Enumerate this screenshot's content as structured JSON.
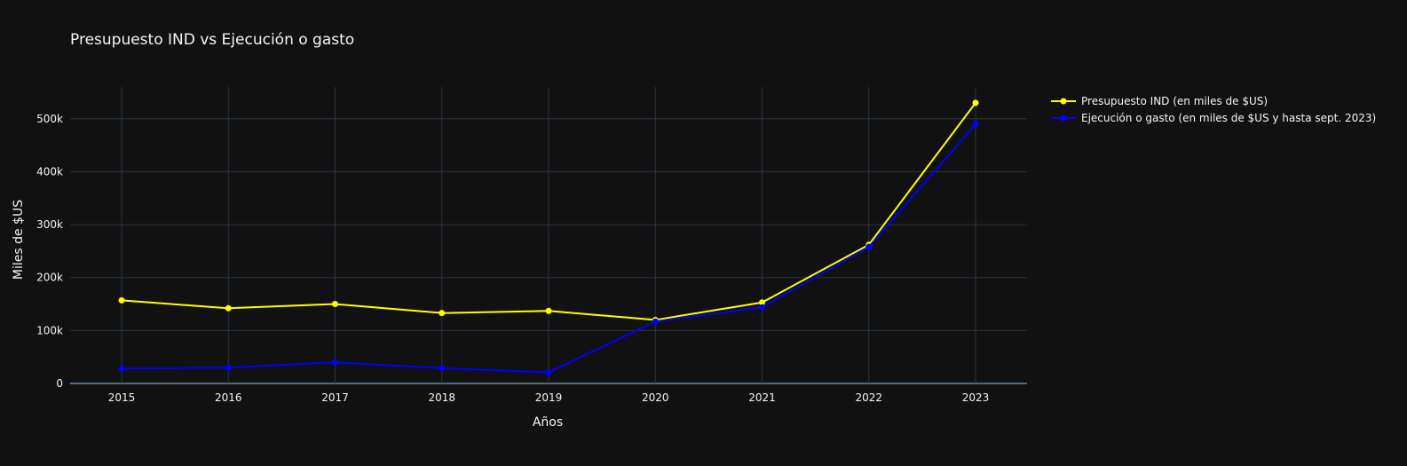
{
  "chart_data": {
    "type": "line",
    "title": "Presupuesto IND vs Ejecución o gasto",
    "xlabel": "Años",
    "ylabel": "Miles de $US",
    "x": [
      "2015",
      "2016",
      "2017",
      "2018",
      "2019",
      "2020",
      "2021",
      "2022",
      "2023"
    ],
    "ylim": [
      0,
      560000
    ],
    "yticks": [
      0,
      100000,
      200000,
      300000,
      400000,
      500000
    ],
    "ytick_labels": [
      "0",
      "100k",
      "200k",
      "300k",
      "400k",
      "500k"
    ],
    "grid": true,
    "legend_position": "top-right, outside plot",
    "background": "#111111",
    "grid_color": "#283442",
    "series": [
      {
        "name": "Presupuesto IND (en miles de $US)",
        "color": "#ffff00",
        "values": [
          157000,
          142000,
          150000,
          133000,
          137000,
          120000,
          153000,
          262000,
          530000
        ]
      },
      {
        "name": "Ejecución o gasto (en miles de $US y hasta sept. 2023)",
        "color": "#0000ff",
        "values": [
          28000,
          30000,
          40000,
          29000,
          21000,
          117000,
          144000,
          258000,
          490000
        ]
      }
    ]
  }
}
